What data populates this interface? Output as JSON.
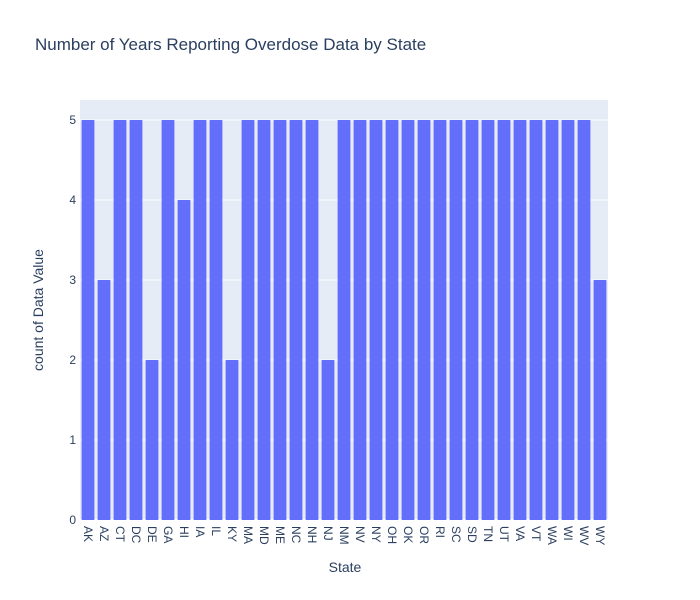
{
  "chart_data": {
    "type": "bar",
    "title": "Number of Years Reporting Overdose Data by State",
    "xlabel": "State",
    "ylabel": "count of Data Value",
    "categories": [
      "AK",
      "AZ",
      "CT",
      "DC",
      "DE",
      "GA",
      "HI",
      "IA",
      "IL",
      "KY",
      "MA",
      "MD",
      "ME",
      "NC",
      "NH",
      "NJ",
      "NM",
      "NV",
      "NY",
      "OH",
      "OK",
      "OR",
      "RI",
      "SC",
      "SD",
      "TN",
      "UT",
      "VA",
      "VT",
      "WA",
      "WI",
      "WV",
      "WY"
    ],
    "values": [
      5,
      3,
      5,
      5,
      2,
      5,
      4,
      5,
      5,
      2,
      5,
      5,
      5,
      5,
      5,
      2,
      5,
      5,
      5,
      5,
      5,
      5,
      5,
      5,
      5,
      5,
      5,
      5,
      5,
      5,
      5,
      5,
      3
    ],
    "ylim": [
      0,
      5.25
    ],
    "yticks": [
      0,
      1,
      2,
      3,
      4,
      5
    ],
    "grid": true,
    "colors": {
      "bar": "#636efa",
      "plot_bg": "#e5ecf6",
      "grid": "#ffffff",
      "text": "#2a3f5f",
      "tick_text": "#2a3f5f"
    }
  }
}
